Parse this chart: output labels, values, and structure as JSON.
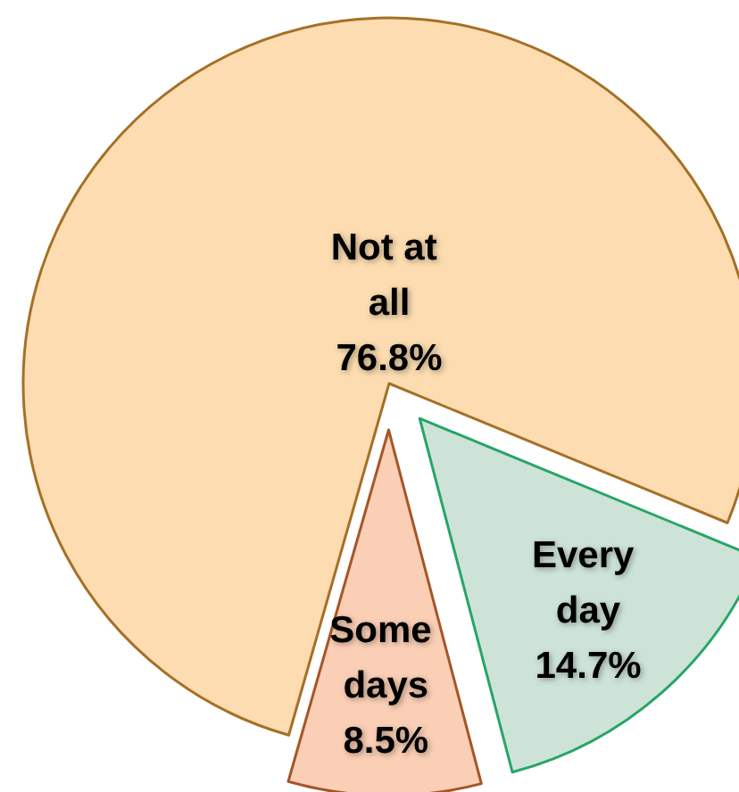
{
  "chart_data": {
    "type": "pie",
    "categories": [
      "Every day",
      "Some days",
      "Not at all"
    ],
    "values": [
      14.7,
      8.5,
      76.8
    ],
    "colors": [
      "#cde3d8",
      "#fbcfb5",
      "#fcdcb0"
    ],
    "value_labels": [
      "14.7%",
      "8.5%",
      "76.8%"
    ]
  }
}
